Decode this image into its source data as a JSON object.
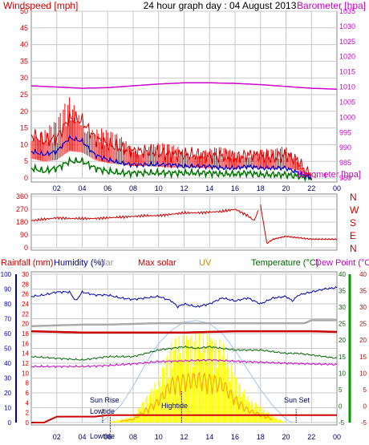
{
  "colors": {
    "wind": "#cc0000",
    "gust": "#ff0000",
    "avg": "#0000cc",
    "green": "#007700",
    "baro": "#cc00cc",
    "rain": "#cc0000",
    "humidity": "#0000aa",
    "solar": "#999999",
    "maxsolar": "#cc0000",
    "uv": "#cc8800",
    "temp": "#006600",
    "dew": "#cc00cc",
    "yellow": "#ffff00",
    "orange": "#ff9900",
    "grid": "#c8c8c8",
    "frame": "#888888"
  },
  "chart_data": [
    {
      "type": "line",
      "title": "24 hour graph day : 04 August 2013",
      "left_label": "Windspeed [mph]",
      "right_label": "Barometer [hpa]",
      "x_ticks": [
        "02",
        "04",
        "06",
        "08",
        "10",
        "12",
        "14",
        "16",
        "18",
        "20",
        "22",
        "00"
      ],
      "y_left_ticks": [
        "50",
        "45",
        "40",
        "35",
        "30",
        "25",
        "20",
        "15",
        "10",
        "5",
        "0"
      ],
      "y_right_ticks": [
        "1035",
        "1030",
        "1025",
        "1020",
        "1015",
        "1010",
        "1005",
        "1000",
        "995",
        "990",
        "985",
        "980"
      ],
      "ylim_left": [
        0,
        50
      ],
      "ylim_right": [
        980,
        1035
      ],
      "series": [
        {
          "role": "gust",
          "x": [
            0,
            1,
            2,
            3,
            4,
            5,
            6,
            7,
            8,
            9,
            10,
            11,
            12,
            13,
            14,
            15,
            16,
            17,
            18,
            19,
            20,
            21,
            21.5,
            22,
            23
          ],
          "values": [
            13,
            11,
            12,
            18,
            17,
            12,
            10,
            9,
            8,
            8,
            7.5,
            7,
            7,
            7,
            6.5,
            6.5,
            6,
            7,
            6.5,
            6,
            7,
            5,
            2,
            1,
            1
          ]
        },
        {
          "role": "avg",
          "x": [
            0,
            1,
            2,
            3,
            4,
            5,
            6,
            7,
            8,
            9,
            10,
            11,
            12,
            13,
            14,
            15,
            16,
            17,
            18,
            19,
            20,
            21,
            22
          ],
          "values": [
            8,
            7,
            8,
            12,
            11,
            7,
            5.5,
            4.5,
            4,
            4,
            4,
            4,
            3.5,
            3.5,
            3.5,
            3,
            3,
            3.5,
            3,
            3,
            3,
            1.5,
            0
          ]
        },
        {
          "role": "lull",
          "x": [
            0,
            1,
            2,
            3,
            4,
            5,
            6,
            7,
            8,
            9,
            10,
            11,
            12,
            13,
            14,
            15,
            16,
            17,
            18,
            19,
            20,
            21,
            22
          ],
          "values": [
            3,
            2,
            3,
            5,
            5,
            3,
            2,
            1.5,
            1.5,
            1.5,
            1.5,
            1.5,
            1.5,
            1.5,
            1.5,
            1.2,
            1.2,
            1.5,
            1,
            1,
            1,
            0.5,
            0
          ]
        },
        {
          "role": "baro",
          "x": [
            0,
            2,
            4,
            6,
            8,
            10,
            12,
            14,
            16,
            18,
            20,
            22,
            24
          ],
          "values": [
            1010.4,
            1010,
            1009.6,
            1009.8,
            1010.4,
            1011,
            1011.4,
            1011.4,
            1011.2,
            1010.8,
            1010.2,
            1009.6,
            1009.3
          ]
        }
      ]
    },
    {
      "type": "line",
      "y_left_ticks": [
        "360",
        "270",
        "180",
        "90",
        "0"
      ],
      "y_right_ticks": [
        "N",
        "W",
        "S",
        "E",
        "N"
      ],
      "ylim": [
        0,
        360
      ],
      "series": [
        {
          "role": "direction",
          "x": [
            0,
            1,
            2,
            3,
            4,
            5,
            6,
            7,
            8,
            9,
            10,
            11,
            12,
            13,
            14,
            15,
            16,
            17,
            17.5,
            18,
            18.5,
            19,
            20,
            21,
            22,
            23
          ],
          "values": [
            190,
            200,
            210,
            205,
            205,
            205,
            210,
            215,
            220,
            225,
            225,
            235,
            245,
            245,
            250,
            255,
            270,
            225,
            190,
            300,
            30,
            60,
            80,
            70,
            60,
            60
          ]
        }
      ]
    },
    {
      "type": "area",
      "labels": {
        "rain": "Rainfall (mm)",
        "humidity": "Humidity (%)",
        "solar": "olar",
        "maxsolar": "Max solar",
        "uv": "UV",
        "temp": "Temperature (°C)",
        "dew": "Dew Point (°C)"
      },
      "x_ticks": [
        "02",
        "04",
        "06",
        "08",
        "10",
        "12",
        "14",
        "16",
        "18",
        "20",
        "22",
        "00"
      ],
      "y_rain_ticks": [
        "30",
        "28",
        "26",
        "24",
        "22",
        "20",
        "18",
        "16",
        "14",
        "12",
        "10",
        "8",
        "6",
        "4",
        "2",
        "0"
      ],
      "y_hum_ticks": [
        "100",
        "90",
        "80",
        "70",
        "60",
        "50",
        "40",
        "30",
        "20",
        "10",
        "0"
      ],
      "y_temp_left_ticks": [
        "40",
        "35",
        "30",
        "25",
        "20",
        "15",
        "10",
        "5",
        "0",
        "-5"
      ],
      "y_temp_right_ticks": [
        "40",
        "35",
        "30",
        "25",
        "20",
        "15",
        "10",
        "5",
        "0",
        "-5"
      ],
      "annotations": {
        "sunrise": "Sun Rise",
        "sunset": "Sun Set",
        "lowtide_top": "Lowtide",
        "hightide": "Hightide",
        "lowtide_bottom": "Lowtide"
      },
      "series": [
        {
          "role": "rain",
          "x": [
            0,
            1,
            2,
            3,
            4,
            5,
            6,
            7,
            8,
            9,
            10,
            11,
            12,
            13,
            14,
            15,
            16,
            17,
            18,
            19,
            20,
            21,
            22,
            23,
            24
          ],
          "values": [
            0,
            0,
            1.2,
            1.2,
            1.2,
            1.2,
            1.5,
            1.5,
            1.5,
            1.5,
            1.5,
            1.5,
            1.5,
            1.5,
            1.5,
            1.5,
            1.5,
            1.5,
            1.5,
            1.5,
            1.5,
            1.5,
            1.5,
            1.5,
            1.5
          ]
        },
        {
          "role": "humidity",
          "x": [
            0,
            1,
            2,
            3,
            3.5,
            4,
            5,
            6,
            7,
            8,
            9,
            10,
            11,
            11.5,
            12,
            13,
            14,
            15,
            16,
            17,
            18,
            19,
            20,
            20.5,
            21,
            22,
            23,
            24
          ],
          "values": [
            85,
            86,
            88,
            88,
            82,
            88,
            86,
            86,
            84,
            83,
            84,
            85,
            82,
            78,
            80,
            78,
            80,
            84,
            82,
            84,
            80,
            84,
            85,
            82,
            86,
            88,
            90,
            91
          ]
        },
        {
          "role": "solar",
          "x": [
            0,
            2,
            4,
            6,
            8,
            10,
            12,
            14,
            16,
            18,
            20,
            21.5,
            22,
            24
          ],
          "values": [
            65,
            65.5,
            66,
            66,
            66.5,
            67,
            67,
            67,
            67,
            67,
            67,
            67,
            69,
            69
          ]
        },
        {
          "role": "maxsolar",
          "x": [
            0,
            2,
            4,
            6,
            8,
            10,
            12,
            14,
            16,
            18,
            20,
            22,
            24
          ],
          "values": [
            22.7,
            22.5,
            22.3,
            22.3,
            22.3,
            22.3,
            22.3,
            22.5,
            22.7,
            22.7,
            22.7,
            22.7,
            22.5
          ]
        },
        {
          "role": "temp",
          "x": [
            0,
            2,
            4,
            6,
            8,
            10,
            11,
            12,
            13,
            14,
            15,
            16,
            17,
            18,
            19,
            20,
            21,
            22,
            23,
            24
          ],
          "values": [
            15,
            14.5,
            14,
            15,
            15,
            17,
            17.5,
            18,
            17.5,
            18,
            17.5,
            17,
            17,
            17,
            16.5,
            16,
            16,
            15.5,
            15,
            14.5
          ]
        },
        {
          "role": "dew",
          "x": [
            0,
            2,
            4,
            6,
            8,
            10,
            12,
            14,
            16,
            18,
            20,
            22,
            24
          ],
          "values": [
            12,
            12,
            12,
            12.3,
            12.8,
            13.5,
            13.7,
            14,
            13.6,
            13.3,
            13,
            12.8,
            12.6
          ]
        },
        {
          "role": "uvmax",
          "x": [
            0,
            6,
            8,
            10,
            11,
            12,
            13,
            14,
            15,
            16,
            17,
            18,
            19,
            20,
            24
          ],
          "values": [
            -5,
            -5,
            -3,
            9,
            20,
            22,
            23,
            22,
            20,
            10,
            3,
            0,
            -3,
            -5,
            -5
          ]
        },
        {
          "role": "maxcurve",
          "x": [
            5.5,
            7,
            8,
            9,
            10,
            11,
            12,
            13,
            14,
            15,
            16,
            17,
            18,
            19,
            20,
            20.5
          ],
          "values": [
            -5,
            0,
            6,
            13,
            19,
            23,
            25.5,
            26,
            25,
            22,
            17,
            11,
            5,
            0,
            -4,
            -5
          ]
        }
      ]
    }
  ]
}
